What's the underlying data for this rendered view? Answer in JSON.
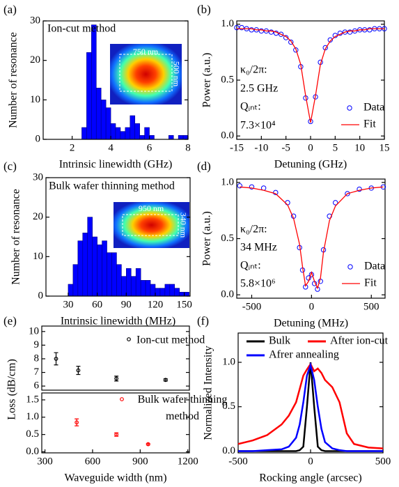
{
  "chart_data": [
    {
      "type": "histogram",
      "panel_label": "(a)",
      "xlabel": "Intrinsic linewidth (GHz)",
      "ylabel": "Number of resonance",
      "annotations": [
        "Ion-cut method"
      ],
      "inset_labels": [
        "750 nm",
        "500 nm"
      ],
      "bins": [
        2.5,
        2.75,
        3.0,
        3.25,
        3.5,
        3.75,
        4.0,
        4.25,
        4.5,
        4.75,
        5.0,
        5.25,
        5.5,
        5.75,
        6.0,
        6.25,
        6.5,
        6.75,
        7.0,
        7.25,
        7.5,
        7.75,
        8.0
      ],
      "values": [
        3,
        22,
        29,
        13,
        10,
        8,
        4,
        3,
        2,
        3,
        6,
        4,
        1,
        3,
        1,
        0,
        0,
        0,
        1,
        0,
        1,
        1
      ],
      "color": "#0000ff",
      "xlim": [
        0.5,
        8
      ],
      "xticks": [
        2,
        4,
        6,
        8
      ],
      "ylim": [
        0,
        30
      ],
      "yticks": [
        0,
        10,
        20,
        30
      ]
    },
    {
      "type": "line",
      "panel_label": "(b)",
      "xlabel": "Detuning (GHz)",
      "ylabel": "Power (a.u.)",
      "annotations": [
        "κ₀/2π:",
        "2.5 GHz",
        "Qᵢₙₜ:",
        "7.3×10⁴"
      ],
      "legend": "lower right",
      "x": [
        -15,
        -14,
        -13,
        -12,
        -11,
        -10,
        -9,
        -8,
        -7,
        -6,
        -5,
        -4,
        -3,
        -2,
        -1,
        0,
        1,
        2,
        3,
        4,
        5,
        6,
        7,
        8,
        9,
        10,
        11,
        12,
        13,
        14,
        15
      ],
      "series": [
        {
          "name": "Data",
          "mode": "markers",
          "color": "#0000ff",
          "values": [
            0.97,
            0.97,
            0.96,
            0.95,
            0.95,
            0.94,
            0.94,
            0.93,
            0.92,
            0.91,
            0.88,
            0.84,
            0.77,
            0.62,
            0.34,
            0.13,
            0.35,
            0.66,
            0.79,
            0.86,
            0.9,
            0.92,
            0.93,
            0.93,
            0.94,
            0.95,
            0.95,
            0.95,
            0.96,
            0.96,
            0.96
          ]
        },
        {
          "name": "Fit",
          "mode": "line",
          "color": "#ff0000",
          "values": [
            0.96,
            0.96,
            0.96,
            0.96,
            0.95,
            0.95,
            0.94,
            0.94,
            0.93,
            0.91,
            0.89,
            0.85,
            0.78,
            0.64,
            0.36,
            0.12,
            0.36,
            0.64,
            0.78,
            0.85,
            0.89,
            0.91,
            0.93,
            0.94,
            0.94,
            0.95,
            0.95,
            0.96,
            0.96,
            0.96,
            0.96
          ]
        }
      ],
      "xlim": [
        -15,
        15
      ],
      "xticks": [
        -15,
        -10,
        -5,
        0,
        5,
        10,
        15
      ],
      "ylim": [
        -0.03,
        1.03
      ],
      "yticks": [
        {
          "value": 0,
          "label": "0.0"
        },
        {
          "value": 0.5,
          "label": "0.5"
        },
        {
          "value": 1,
          "label": "1.0"
        }
      ]
    },
    {
      "type": "histogram",
      "panel_label": "(c)",
      "xlabel": "Intrinsic linewidth (MHz)",
      "ylabel": "Number of resonance",
      "annotations": [
        "Bulk wafer thinning method"
      ],
      "inset_labels": [
        "950 nm",
        "340 nm"
      ],
      "bins": [
        30,
        35,
        40,
        45,
        50,
        55,
        60,
        65,
        70,
        75,
        80,
        85,
        90,
        95,
        100,
        105,
        110,
        115,
        120,
        125,
        130,
        135,
        140,
        145,
        150,
        155
      ],
      "values": [
        3,
        8,
        14,
        16,
        20,
        15,
        13,
        14,
        11,
        11,
        8,
        5,
        7,
        5,
        7,
        4,
        4,
        3,
        2,
        2,
        3,
        3,
        2,
        1,
        1
      ],
      "color": "#0000ff",
      "xlim": [
        7,
        156
      ],
      "xticks": [
        30,
        60,
        90,
        120,
        150
      ],
      "ylim": [
        0,
        30
      ],
      "yticks": [
        0,
        10,
        20,
        30
      ]
    },
    {
      "type": "line",
      "panel_label": "(d)",
      "xlabel": "Detuning (MHz)",
      "ylabel": "Power (a.u.)",
      "annotations": [
        "κ₀/2π:",
        "34 MHz",
        "Qᵢₙₜ:",
        "5.8×10⁶"
      ],
      "legend": "lower right",
      "x": [
        -600,
        -500,
        -400,
        -300,
        -200,
        -150,
        -100,
        -75,
        -50,
        -25,
        0,
        25,
        50,
        75,
        100,
        150,
        200,
        300,
        400,
        500,
        600
      ],
      "series": [
        {
          "name": "Data",
          "mode": "markers",
          "color": "#0000ff",
          "values": [
            0.97,
            0.96,
            0.95,
            0.91,
            0.82,
            0.7,
            0.42,
            0.22,
            0.07,
            0.15,
            0.18,
            0.1,
            0.05,
            0.12,
            0.4,
            0.7,
            0.82,
            0.9,
            0.94,
            0.95,
            0.96
          ]
        },
        {
          "name": "Fit",
          "mode": "line",
          "color": "#ff0000",
          "values": [
            0.96,
            0.95,
            0.93,
            0.9,
            0.8,
            0.68,
            0.45,
            0.25,
            0.08,
            0.12,
            0.2,
            0.12,
            0.06,
            0.15,
            0.38,
            0.66,
            0.79,
            0.9,
            0.93,
            0.95,
            0.96
          ]
        }
      ],
      "xlim": [
        -625,
        615
      ],
      "xticks": [
        -500,
        0,
        500
      ],
      "ylim": [
        -0.03,
        1.03
      ],
      "yticks": [
        {
          "value": 0,
          "label": "0.0"
        },
        {
          "value": 0.5,
          "label": "0.5"
        },
        {
          "value": 1,
          "label": "1.0"
        }
      ]
    },
    {
      "type": "errorbar",
      "panel_label": "(e)",
      "xlabel": "Waveguide width (nm)",
      "ylabel": "Loss (dB/cm)",
      "series": [
        {
          "name": "Ion-cut method",
          "color": "#000000",
          "axis": "y",
          "x": [
            370,
            510,
            750,
            1060
          ],
          "values": [
            8.0,
            7.15,
            6.55,
            6.45
          ],
          "errors": [
            0.45,
            0.3,
            0.18,
            0.08
          ]
        },
        {
          "name": "Bulk wafer thinning method",
          "color": "#ff0000",
          "axis": "y2",
          "x": [
            500,
            750,
            950
          ],
          "values": [
            0.85,
            0.5,
            0.22
          ],
          "errors": [
            0.1,
            0.05,
            0.02
          ]
        }
      ],
      "xlim": [
        280,
        1210
      ],
      "xticks": [
        300,
        600,
        900,
        1200
      ],
      "ylim": [
        5.7,
        10.4
      ],
      "yticks": [
        6,
        7,
        8,
        9,
        10
      ],
      "y2lim": [
        -0.03,
        1.7
      ],
      "y2ticks": [
        {
          "value": 0,
          "label": "0.0"
        },
        {
          "value": 0.5,
          "label": "0.5"
        },
        {
          "value": 1,
          "label": "1.0"
        },
        {
          "value": 1.5,
          "label": "1.5"
        }
      ]
    },
    {
      "type": "line",
      "panel_label": "(f)",
      "xlabel": "Rocking angle (arcsec)",
      "ylabel": "Normalized Intensity",
      "legend": "upper",
      "x": [
        -500,
        -400,
        -300,
        -200,
        -150,
        -100,
        -75,
        -50,
        -25,
        0,
        25,
        50,
        75,
        100,
        150,
        200,
        250,
        300,
        400,
        500
      ],
      "series": [
        {
          "name": "Bulk",
          "mode": "line",
          "color": "#000000",
          "values": [
            0,
            0,
            0,
            0,
            0,
            0,
            0.01,
            0.05,
            0.5,
            1.0,
            0.5,
            0.05,
            0.01,
            0,
            0,
            0,
            0,
            0,
            0,
            0
          ]
        },
        {
          "name": "After ion-cut",
          "mode": "line",
          "color": "#ff0000",
          "values": [
            0.08,
            0.12,
            0.18,
            0.3,
            0.4,
            0.55,
            0.7,
            0.85,
            0.92,
            0.98,
            0.9,
            0.93,
            0.88,
            0.8,
            0.72,
            0.55,
            0.2,
            0.08,
            0.04,
            0.03
          ]
        },
        {
          "name": "Afrer annealing",
          "mode": "line",
          "color": "#0000ff",
          "values": [
            0,
            0,
            0.01,
            0.02,
            0.05,
            0.15,
            0.3,
            0.55,
            0.85,
            0.97,
            0.8,
            0.5,
            0.25,
            0.1,
            0.03,
            0.01,
            0,
            0,
            0,
            0
          ]
        }
      ],
      "xlim": [
        -500,
        500
      ],
      "xticks": [
        -500,
        0,
        500
      ],
      "ylim": [
        -0.02,
        1.33
      ],
      "yticks": [
        {
          "value": 0,
          "label": "0.0"
        },
        {
          "value": 0.5,
          "label": "0.5"
        },
        {
          "value": 1,
          "label": "1.0"
        }
      ]
    }
  ]
}
